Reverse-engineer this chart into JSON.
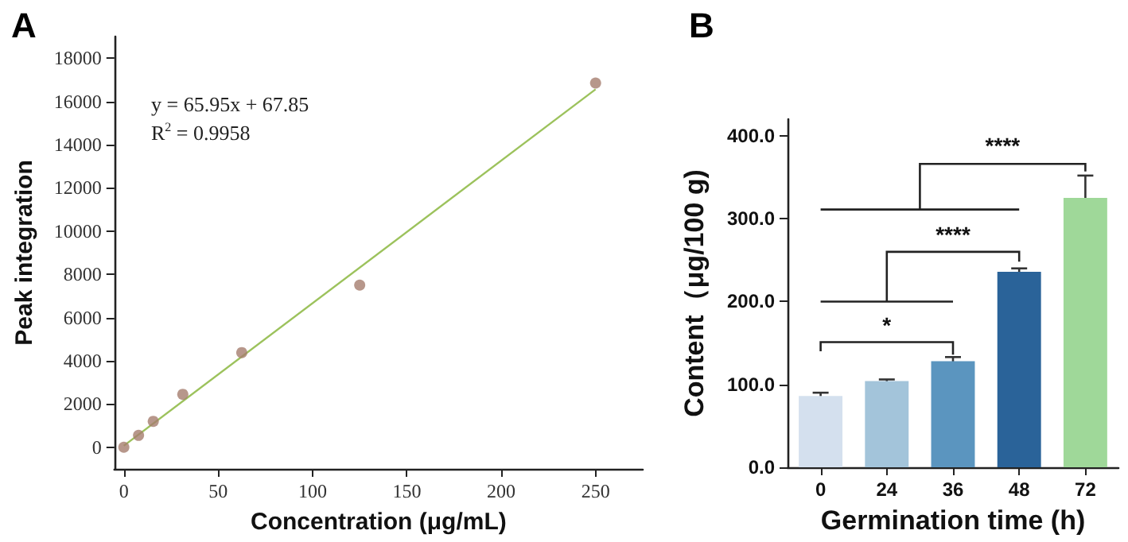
{
  "chart_data": [
    {
      "type": "scatter",
      "title": "A",
      "xlabel": "Concentration (μg/mL)",
      "ylabel": "Peak integration",
      "x": [
        0,
        7.8,
        15.6,
        31.25,
        62.5,
        125,
        250
      ],
      "marker": "circle",
      "series": [
        {
          "color": "#a57d6e",
          "values": [
            0,
            550,
            1200,
            2450,
            4380,
            7500,
            16850
          ]
        },
        {
          "type": "line",
          "color": "#9cc25c",
          "marker": "none",
          "x": [
            0,
            250
          ],
          "values": [
            70,
            16560
          ]
        }
      ],
      "xlim": [
        -5,
        275
      ],
      "xticks": [
        0,
        50,
        100,
        150,
        200,
        250
      ],
      "ylim": [
        -1000,
        19000
      ],
      "yticks": [
        0,
        2000,
        4000,
        6000,
        8000,
        10000,
        12000,
        14000,
        16000,
        18000
      ],
      "annotations": [
        "y = 65.95x + 67.85",
        "R$^{2}$ = 0.9958"
      ]
    },
    {
      "type": "bar",
      "title": "B",
      "xlabel": "Germination time (h)",
      "ylabel": "Content（μg/100 g)",
      "categories": [
        "0",
        "24",
        "36",
        "48",
        "72"
      ],
      "values": [
        86,
        104,
        128,
        236,
        325
      ],
      "errors": [
        4,
        2,
        5,
        4,
        27
      ],
      "colors": [
        "#d4e0ee",
        "#a3c4da",
        "#5b95bf",
        "#2a6399",
        "#9fd899"
      ],
      "ylim": [
        0,
        420
      ],
      "yticks": [
        {
          "value": 0,
          "label": "0.0"
        },
        {
          "value": 100,
          "label": "100.0"
        },
        {
          "value": 200,
          "label": "200.0"
        },
        {
          "value": 300,
          "label": "300.0"
        },
        {
          "value": 400,
          "label": "400.0"
        }
      ],
      "annotations": [
        "*",
        "****",
        "****"
      ]
    }
  ]
}
